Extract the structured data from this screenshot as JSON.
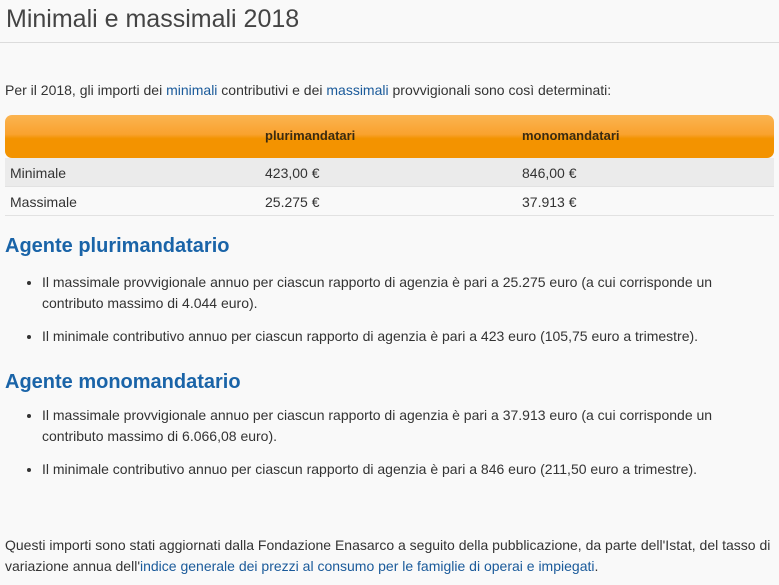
{
  "title": "Minimali e massimali 2018",
  "intro": {
    "part1": "Per il 2018, gli importi dei ",
    "link1": "minimali",
    "part2": " contributivi e dei ",
    "link2": "massimali",
    "part3": " provvigionali sono così determinati:"
  },
  "table": {
    "headers": [
      "",
      "plurimandatari",
      "monomandatari"
    ],
    "rows": [
      {
        "label": "Minimale",
        "pluri": "423,00 €",
        "mono": "846,00 €"
      },
      {
        "label": "Massimale",
        "pluri": "25.275 €",
        "mono": "37.913 €"
      }
    ]
  },
  "sections": [
    {
      "heading": "Agente plurimandatario",
      "items": [
        "Il massimale provvigionale annuo per ciascun rapporto di agenzia è pari a 25.275 euro (a cui corrisponde un contributo massimo di 4.044 euro).",
        "Il minimale contributivo annuo per ciascun rapporto di agenzia è pari a 423 euro (105,75 euro a trimestre)."
      ]
    },
    {
      "heading": "Agente monomandatario",
      "items": [
        "Il massimale provvigionale annuo per ciascun rapporto di agenzia è pari a 37.913 euro (a cui corrisponde un contributo massimo di 6.066,08 euro).",
        "Il minimale contributivo annuo per ciascun rapporto di agenzia è pari a 846 euro (211,50 euro a trimestre)."
      ]
    }
  ],
  "footer": {
    "text": "Questi importi sono stati aggiornati dalla Fondazione Enasarco a seguito della pubblicazione, da parte dell'Istat, del tasso di variazione annua dell'",
    "link": "indice generale dei prezzi al consumo per le famiglie di operai e impiegati",
    "end": "."
  }
}
